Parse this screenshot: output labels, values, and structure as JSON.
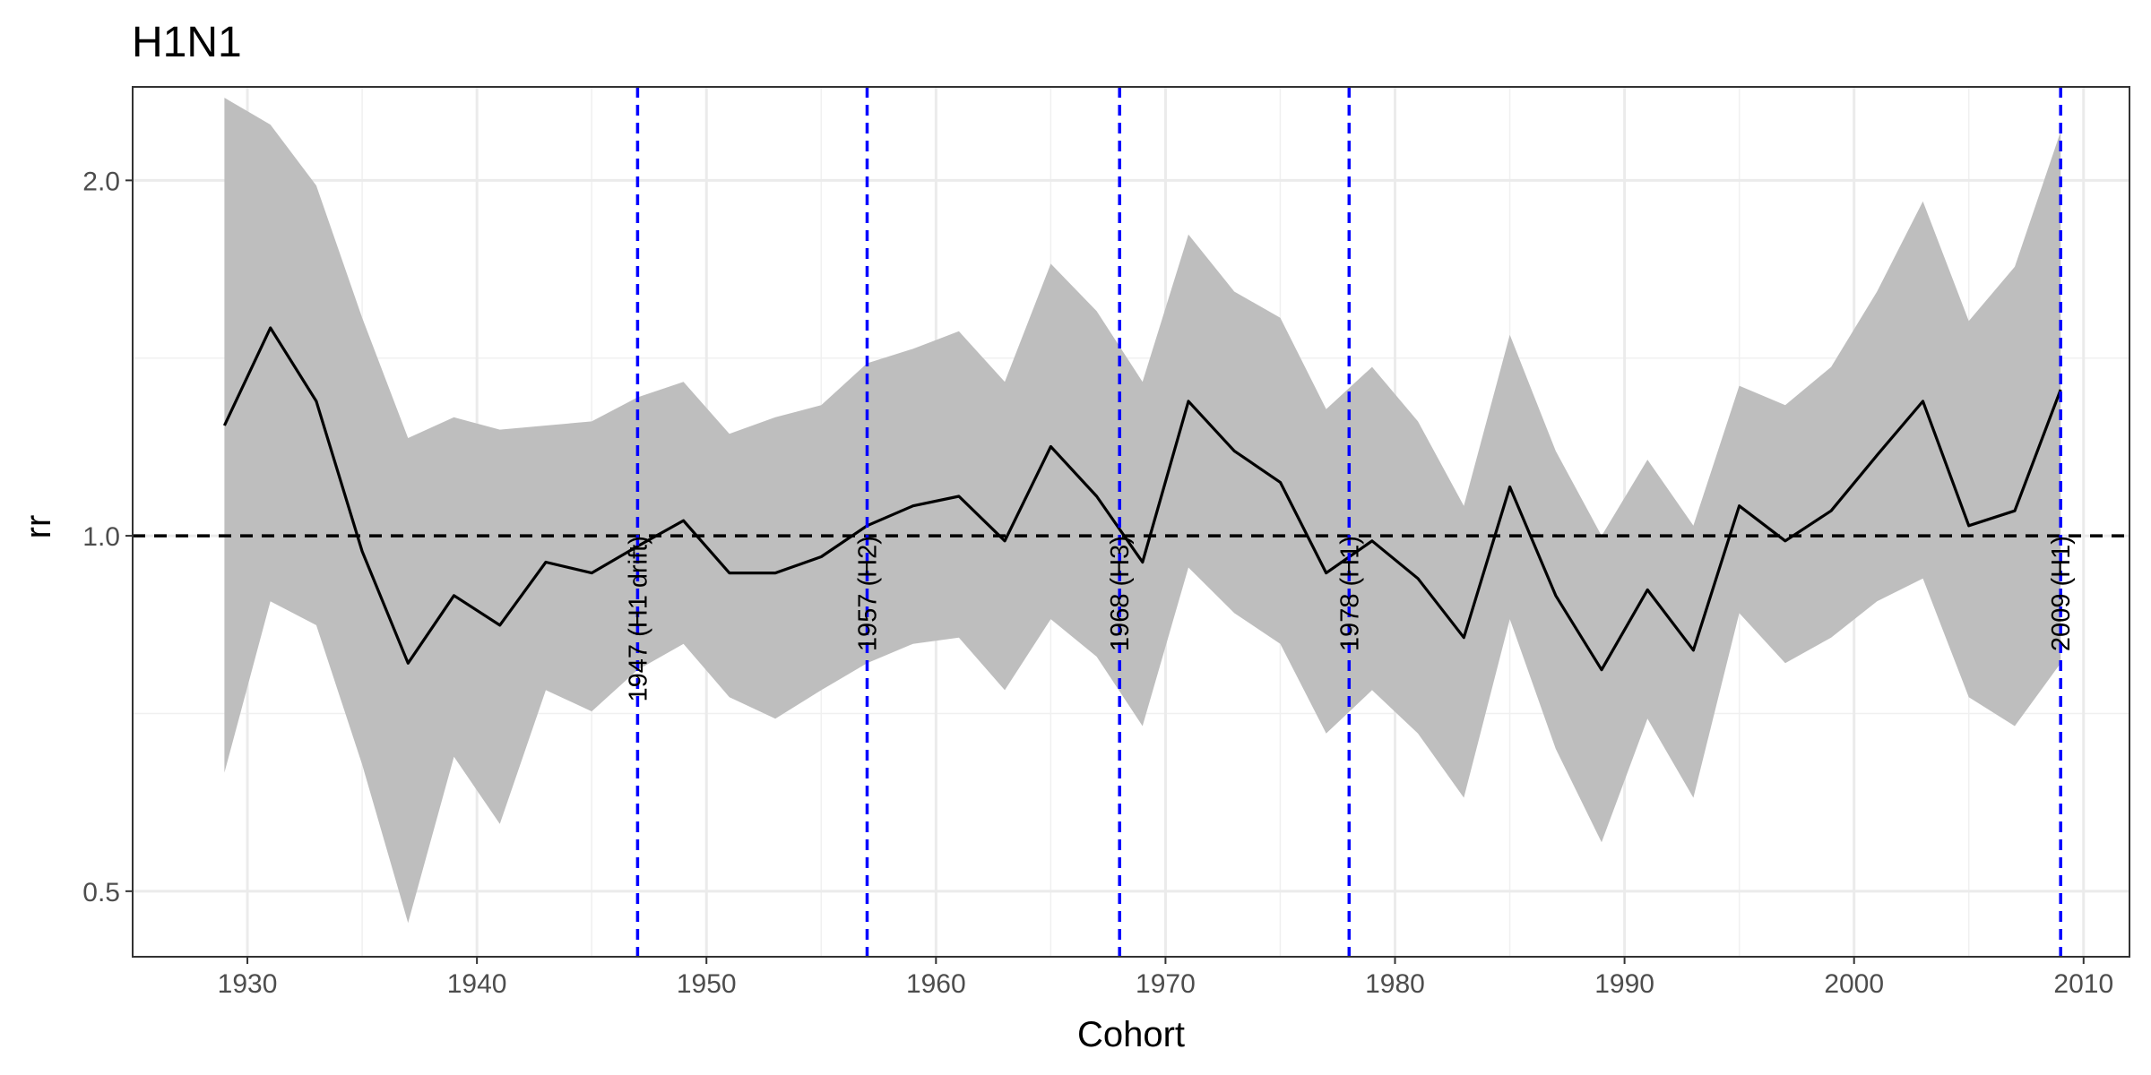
{
  "chart_data": {
    "type": "line",
    "title": "H1N1",
    "xlabel": "Cohort",
    "ylabel": "rr",
    "y_scale": "log",
    "xlim": [
      1925,
      2012
    ],
    "ylim": [
      0.44,
      2.4
    ],
    "x_ticks": [
      1930,
      1940,
      1950,
      1960,
      1970,
      1980,
      1990,
      2000,
      2010
    ],
    "x_tick_labels": [
      "1930",
      "1940",
      "1950",
      "1960",
      "1970",
      "1980",
      "1990",
      "2000",
      "2010"
    ],
    "y_ticks": [
      0.5,
      1.0,
      2.0
    ],
    "y_tick_labels": [
      "0.5",
      "1.0",
      "2.0"
    ],
    "y_minor_ticks": [
      0.7071,
      1.4142
    ],
    "grid": true,
    "reference_line": {
      "y": 1.0,
      "style": "dashed",
      "color": "#000000"
    },
    "vertical_lines": [
      {
        "x": 1947,
        "label": "1947 (H1 drift)"
      },
      {
        "x": 1957,
        "label": "1957 (H2)"
      },
      {
        "x": 1968,
        "label": "1968 (H3)"
      },
      {
        "x": 1978,
        "label": "1978 (H1)"
      },
      {
        "x": 2009,
        "label": "2009 (H1)"
      }
    ],
    "vertical_line_color": "#0000ff",
    "series": [
      {
        "name": "rr",
        "color": "#000000",
        "band_color": "#bebebe",
        "x": [
          1929,
          1931,
          1933,
          1935,
          1937,
          1939,
          1941,
          1943,
          1945,
          1947,
          1949,
          1951,
          1953,
          1955,
          1957,
          1959,
          1961,
          1963,
          1965,
          1967,
          1969,
          1971,
          1973,
          1975,
          1977,
          1979,
          1981,
          1983,
          1985,
          1987,
          1989,
          1991,
          1993,
          1995,
          1997,
          1999,
          2001,
          2003,
          2005,
          2007,
          2009
        ],
        "values": [
          1.24,
          1.5,
          1.3,
          0.97,
          0.78,
          0.89,
          0.84,
          0.95,
          0.93,
          0.98,
          1.03,
          0.93,
          0.93,
          0.96,
          1.02,
          1.06,
          1.08,
          0.99,
          1.19,
          1.08,
          0.95,
          1.3,
          1.18,
          1.11,
          0.93,
          0.99,
          0.92,
          0.82,
          1.1,
          0.89,
          0.77,
          0.9,
          0.8,
          1.06,
          0.99,
          1.05,
          1.17,
          1.3,
          1.02,
          1.05,
          1.33
        ],
        "lower": [
          0.63,
          0.88,
          0.84,
          0.64,
          0.47,
          0.65,
          0.57,
          0.74,
          0.71,
          0.77,
          0.81,
          0.73,
          0.7,
          0.74,
          0.78,
          0.81,
          0.82,
          0.74,
          0.85,
          0.79,
          0.69,
          0.94,
          0.86,
          0.81,
          0.68,
          0.74,
          0.68,
          0.6,
          0.85,
          0.66,
          0.55,
          0.7,
          0.6,
          0.86,
          0.78,
          0.82,
          0.88,
          0.92,
          0.73,
          0.69,
          0.78
        ],
        "upper": [
          2.35,
          2.23,
          1.98,
          1.53,
          1.21,
          1.26,
          1.23,
          1.24,
          1.25,
          1.31,
          1.35,
          1.22,
          1.26,
          1.29,
          1.4,
          1.44,
          1.49,
          1.35,
          1.7,
          1.55,
          1.35,
          1.8,
          1.61,
          1.53,
          1.28,
          1.39,
          1.25,
          1.06,
          1.48,
          1.18,
          1.0,
          1.16,
          1.02,
          1.34,
          1.29,
          1.39,
          1.61,
          1.92,
          1.52,
          1.69,
          2.2
        ]
      }
    ]
  }
}
